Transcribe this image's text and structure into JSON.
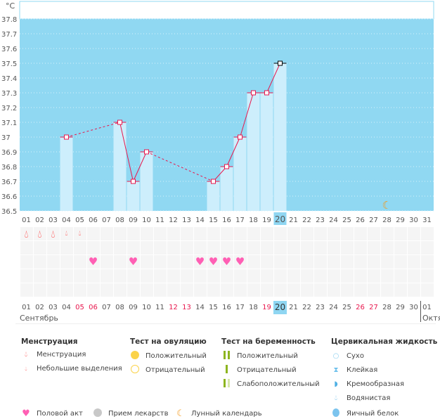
{
  "chart_data": {
    "type": "line",
    "ylabel": "°C",
    "ylim": [
      36.5,
      37.8
    ],
    "yticks": [
      "36.5",
      "36.6",
      "36.7",
      "36.8",
      "36.9",
      "37",
      "37.1",
      "37.2",
      "37.3",
      "37.4",
      "37.5",
      "37.6",
      "37.7",
      "37.8"
    ],
    "days": [
      "01",
      "02",
      "03",
      "04",
      "05",
      "06",
      "07",
      "08",
      "09",
      "10",
      "11",
      "12",
      "13",
      "14",
      "15",
      "16",
      "17",
      "18",
      "19",
      "20",
      "21",
      "22",
      "23",
      "24",
      "25",
      "26",
      "27",
      "28",
      "29",
      "30",
      "31"
    ],
    "series": [
      {
        "name": "temperature",
        "points": [
          [
            4,
            37.0
          ],
          [
            8,
            37.1
          ],
          [
            9,
            36.7
          ],
          [
            10,
            36.9
          ],
          [
            15,
            36.7
          ],
          [
            16,
            36.8
          ],
          [
            17,
            37.0
          ],
          [
            18,
            37.3
          ],
          [
            19,
            37.3
          ],
          [
            20,
            37.5
          ]
        ]
      }
    ],
    "today": 20,
    "moon_day": 28
  },
  "rows": {
    "menstruation": [
      [
        1,
        "heavy"
      ],
      [
        2,
        "heavy"
      ],
      [
        3,
        "heavy"
      ],
      [
        4,
        "light"
      ],
      [
        5,
        "light"
      ]
    ],
    "intercourse": [
      6,
      9,
      14,
      15,
      16,
      17
    ]
  },
  "bottom_days": [
    "01",
    "02",
    "03",
    "04",
    "05",
    "06",
    "07",
    "08",
    "09",
    "10",
    "11",
    "12",
    "13",
    "14",
    "15",
    "16",
    "17",
    "18",
    "19",
    "20",
    "21",
    "22",
    "23",
    "24",
    "25",
    "26",
    "27",
    "28",
    "29",
    "30",
    "01"
  ],
  "weekend_days": [
    5,
    6,
    12,
    13,
    19,
    26,
    27
  ],
  "months": {
    "current": "Сентябрь",
    "next": "Октя"
  },
  "colors": {
    "plot_bg": "#90d8f2",
    "bar": "#cdeefc",
    "line": "#e8174d",
    "today": "#8fd6f2"
  },
  "legend": {
    "menstruation": {
      "title": "Менструация",
      "items": [
        "Менструация",
        "Небольшие выделения"
      ]
    },
    "ovulation": {
      "title": "Тест на овуляцию",
      "items": [
        "Положительный",
        "Отрицательный"
      ]
    },
    "pregnancy": {
      "title": "Тест на беременность",
      "items": [
        "Положительный",
        "Отрицательный",
        "Слабоположительный"
      ]
    },
    "cervical": {
      "title": "Цервикальная жидкость",
      "items": [
        "Сухо",
        "Клейкая",
        "Кремообразная",
        "Водянистая",
        "Яичный белок"
      ]
    },
    "other": [
      "Половой акт",
      "Прием лекарств",
      "Лунный календарь"
    ]
  }
}
